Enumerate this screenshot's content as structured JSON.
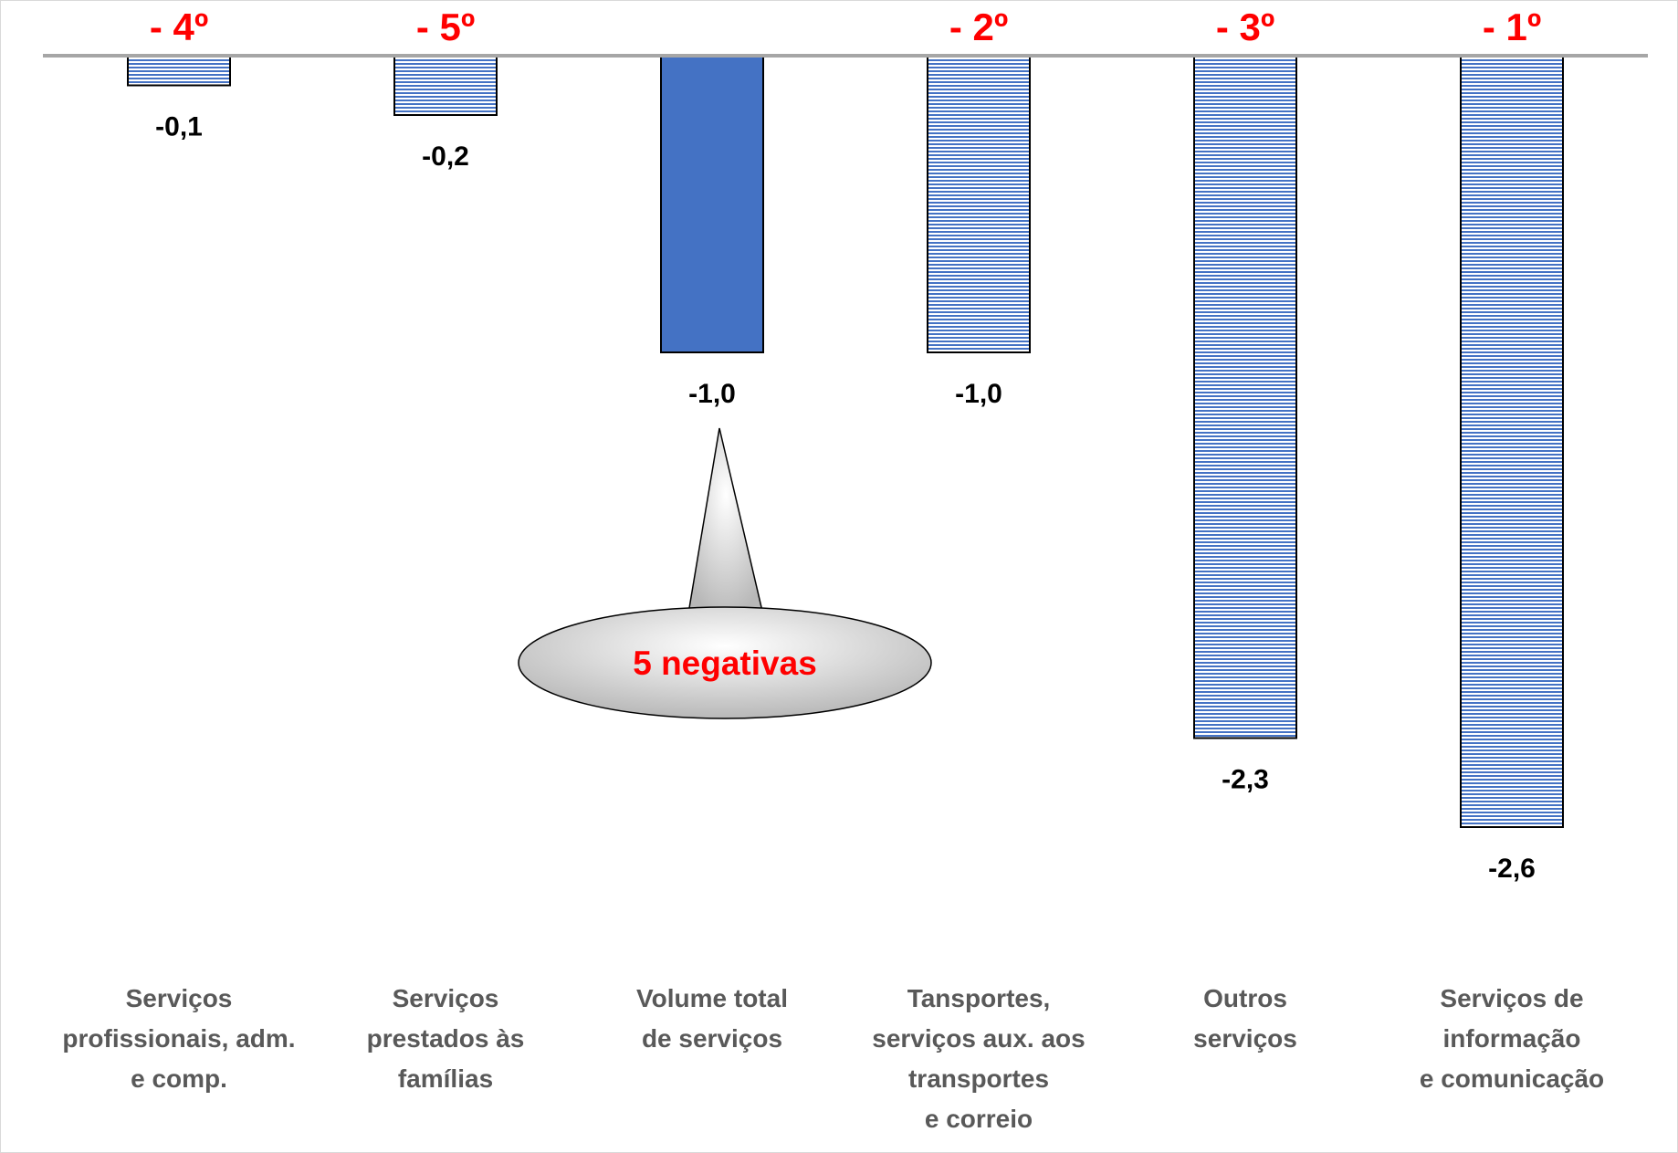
{
  "chart_data": {
    "type": "bar",
    "categories": [
      [
        "Serviços",
        "profissionais, adm.",
        "e comp."
      ],
      [
        "Serviços",
        "prestados às",
        "famílias"
      ],
      [
        "Volume total",
        "de serviços"
      ],
      [
        "Tansportes,",
        "serviços aux. aos",
        "transportes",
        "e correio"
      ],
      [
        "Outros",
        "serviços"
      ],
      [
        "Serviços de",
        "informação",
        "e comunicação"
      ]
    ],
    "values": [
      -0.1,
      -0.2,
      -1.0,
      -1.0,
      -2.3,
      -2.6
    ],
    "value_labels": [
      "-0,1",
      "-0,2",
      "-1,0",
      "-1,0",
      "-2,3",
      "-2,6"
    ],
    "ranks": [
      "- 4º",
      "- 5º",
      "",
      "- 2º",
      "- 3º",
      "- 1º"
    ],
    "highlight_index": 2,
    "ylim": [
      -2.6,
      0
    ],
    "grid": false,
    "callout": "5 negativas",
    "colors": {
      "highlight_bar": "#4472c4",
      "hatched_bar": "#4472c4",
      "hatched_background": "#ffffff",
      "baseline": "#a6a6a6",
      "rank_text": "#ff0000",
      "category_text": "#595959",
      "callout_fill": "#c8c8c8",
      "callout_text": "#ff0000"
    }
  }
}
